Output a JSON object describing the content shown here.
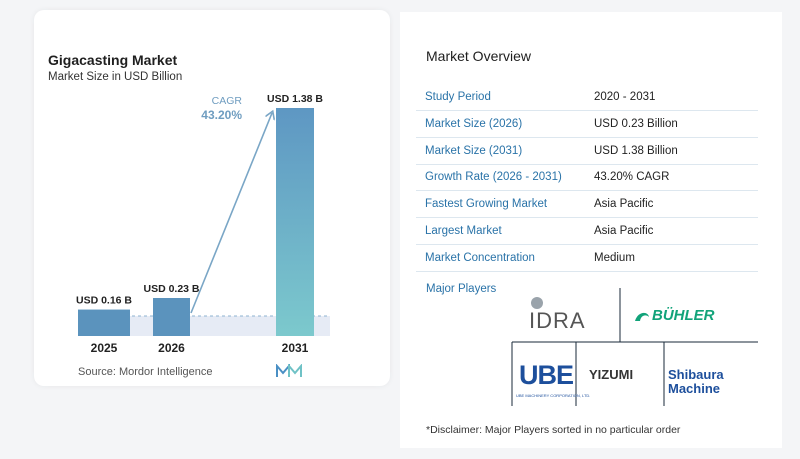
{
  "chart_data": {
    "type": "bar",
    "title": "Gigacasting Market",
    "subtitle": "Market Size in USD Billion",
    "categories": [
      "2025",
      "2026",
      "2031"
    ],
    "values": [
      0.16,
      0.23,
      1.38
    ],
    "value_labels": [
      "USD 0.16 B",
      "USD 0.23 B",
      "USD 1.38 B"
    ],
    "cagr_label": "CAGR",
    "cagr_value": "43.20%",
    "colors": {
      "bar_small": "#5b93bd",
      "bar_top": "#5e97c3",
      "bar_bottom": "#7cc9cd",
      "arrow": "#7aa6c6",
      "cagr_text": "#6f9dc0"
    }
  },
  "source_text": "Source:  Mordor Intelligence",
  "overview": {
    "title": "Market Overview",
    "rows": [
      {
        "label": "Study Period",
        "value": "2020 - 2031"
      },
      {
        "label": "Market Size (2026)",
        "value": "USD 0.23 Billion"
      },
      {
        "label": "Market Size (2031)",
        "value": "USD 1.38 Billion"
      },
      {
        "label": "Growth Rate (2026 - 2031)",
        "value": "43.20% CAGR"
      },
      {
        "label": "Fastest Growing Market",
        "value": "Asia Pacific"
      },
      {
        "label": "Largest Market",
        "value": "Asia Pacific"
      },
      {
        "label": "Market Concentration",
        "value": "Medium"
      }
    ]
  },
  "major_players": {
    "title": "Major Players",
    "logos": {
      "idra": "IDRA",
      "buhler": "BÜHLER",
      "ube": "UBE",
      "ube_sub": "UBE MACHINERY CORPORATION, LTD.",
      "yizumi": "YIZUMI",
      "shibaura_1": "Shibaura",
      "shibaura_2": "Machine"
    }
  },
  "disclaimer": "*Disclaimer: Major Players sorted in no particular order"
}
